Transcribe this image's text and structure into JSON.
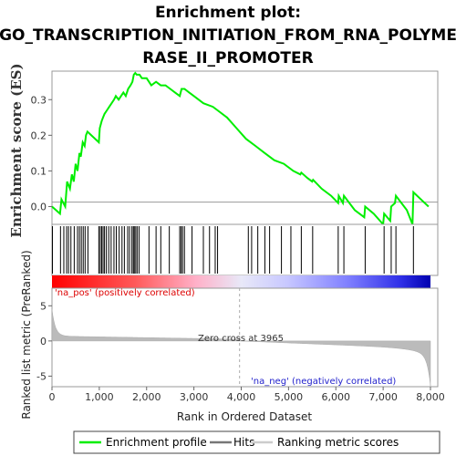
{
  "chart_data": {
    "type": "line",
    "title_lines": [
      "Enrichment plot:",
      "GO_TRANSCRIPTION_INITIATION_FROM_RNA_POLYME",
      "RASE_II_PROMOTER"
    ],
    "xlabel": "Rank in Ordered Dataset",
    "ylabel_top": "Enrichment score (ES)",
    "ylabel_bottom": "Ranked list metric (PreRanked)",
    "xlim": [
      0,
      8000
    ],
    "x_ticks": [
      0,
      1000,
      2000,
      3000,
      4000,
      5000,
      6000,
      7000,
      8000
    ],
    "x_tick_labels": [
      "0",
      "1,000",
      "2,000",
      "3,000",
      "4,000",
      "5,000",
      "6,000",
      "7,000",
      "8,000"
    ],
    "es_ylim": [
      -0.05,
      0.38
    ],
    "es_ticks": [
      0.0,
      0.1,
      0.2,
      0.3
    ],
    "es_tick_labels": [
      "0.0",
      "0.1",
      "0.2",
      "0.3"
    ],
    "metric_ylim": [
      -6.5,
      7.5
    ],
    "metric_ticks": [
      -5,
      0,
      5
    ],
    "metric_tick_labels": [
      "-5",
      "0",
      "5"
    ],
    "zero_cross_label": "Zero cross at 3965",
    "zero_cross": 3965,
    "pos_label": "'na_pos' (positively correlated)",
    "neg_label": "'na_neg' (negatively correlated)",
    "legend": [
      "Enrichment profile",
      "Hits",
      "Ranking metric scores"
    ],
    "colors": {
      "profile": "#00ee00",
      "hits": "#000000",
      "metric": "#bbbbbb",
      "pos": "#ff0000",
      "neg": "#0000ff"
    },
    "es_curve": {
      "x": [
        0,
        170,
        200,
        280,
        320,
        380,
        420,
        460,
        500,
        540,
        580,
        610,
        650,
        690,
        720,
        750,
        990,
        1010,
        1050,
        1080,
        1110,
        1160,
        1210,
        1260,
        1310,
        1350,
        1410,
        1460,
        1510,
        1560,
        1610,
        1660,
        1700,
        1730,
        1760,
        1790,
        1850,
        1900,
        2000,
        2100,
        2200,
        2300,
        2400,
        2500,
        2600,
        2700,
        2740,
        2800,
        2900,
        3000,
        3200,
        3400,
        3500,
        3700,
        3900,
        4100,
        4300,
        4500,
        4700,
        4900,
        5100,
        5250,
        5270,
        5400,
        5500,
        5520,
        5700,
        5900,
        6050,
        6060,
        6150,
        6170,
        6400,
        6600,
        6620,
        6800,
        7000,
        7020,
        7150,
        7170,
        7250,
        7270,
        7500,
        7620,
        7640,
        7800,
        7960
      ],
      "y": [
        0.0,
        -0.02,
        0.02,
        0.0,
        0.07,
        0.05,
        0.09,
        0.07,
        0.12,
        0.1,
        0.15,
        0.14,
        0.18,
        0.17,
        0.2,
        0.21,
        0.18,
        0.22,
        0.24,
        0.25,
        0.26,
        0.27,
        0.28,
        0.29,
        0.3,
        0.31,
        0.3,
        0.31,
        0.32,
        0.31,
        0.33,
        0.34,
        0.35,
        0.37,
        0.375,
        0.37,
        0.37,
        0.36,
        0.36,
        0.34,
        0.35,
        0.34,
        0.34,
        0.33,
        0.32,
        0.31,
        0.33,
        0.33,
        0.32,
        0.31,
        0.29,
        0.28,
        0.27,
        0.25,
        0.22,
        0.19,
        0.17,
        0.15,
        0.13,
        0.12,
        0.1,
        0.09,
        0.095,
        0.08,
        0.07,
        0.075,
        0.05,
        0.03,
        0.01,
        0.03,
        0.01,
        0.03,
        -0.01,
        -0.03,
        0.0,
        -0.02,
        -0.05,
        -0.02,
        -0.04,
        0.0,
        0.01,
        0.03,
        -0.01,
        -0.05,
        0.04,
        0.02,
        0.0
      ]
    },
    "hits": [
      10,
      180,
      250,
      310,
      350,
      400,
      470,
      540,
      580,
      620,
      660,
      700,
      760,
      990,
      1020,
      1050,
      1080,
      1110,
      1150,
      1200,
      1250,
      1310,
      1360,
      1420,
      1480,
      1530,
      1600,
      1640,
      1690,
      1720,
      1740,
      1770,
      1800,
      1840,
      2050,
      2200,
      2300,
      2480,
      2700,
      2730,
      2760,
      2800,
      2960,
      3200,
      3330,
      3450,
      3500,
      4150,
      4220,
      4350,
      4500,
      4600,
      4850,
      5050,
      5270,
      5510,
      6050,
      6170,
      6620,
      7020,
      7170,
      7270,
      7640
    ]
  }
}
